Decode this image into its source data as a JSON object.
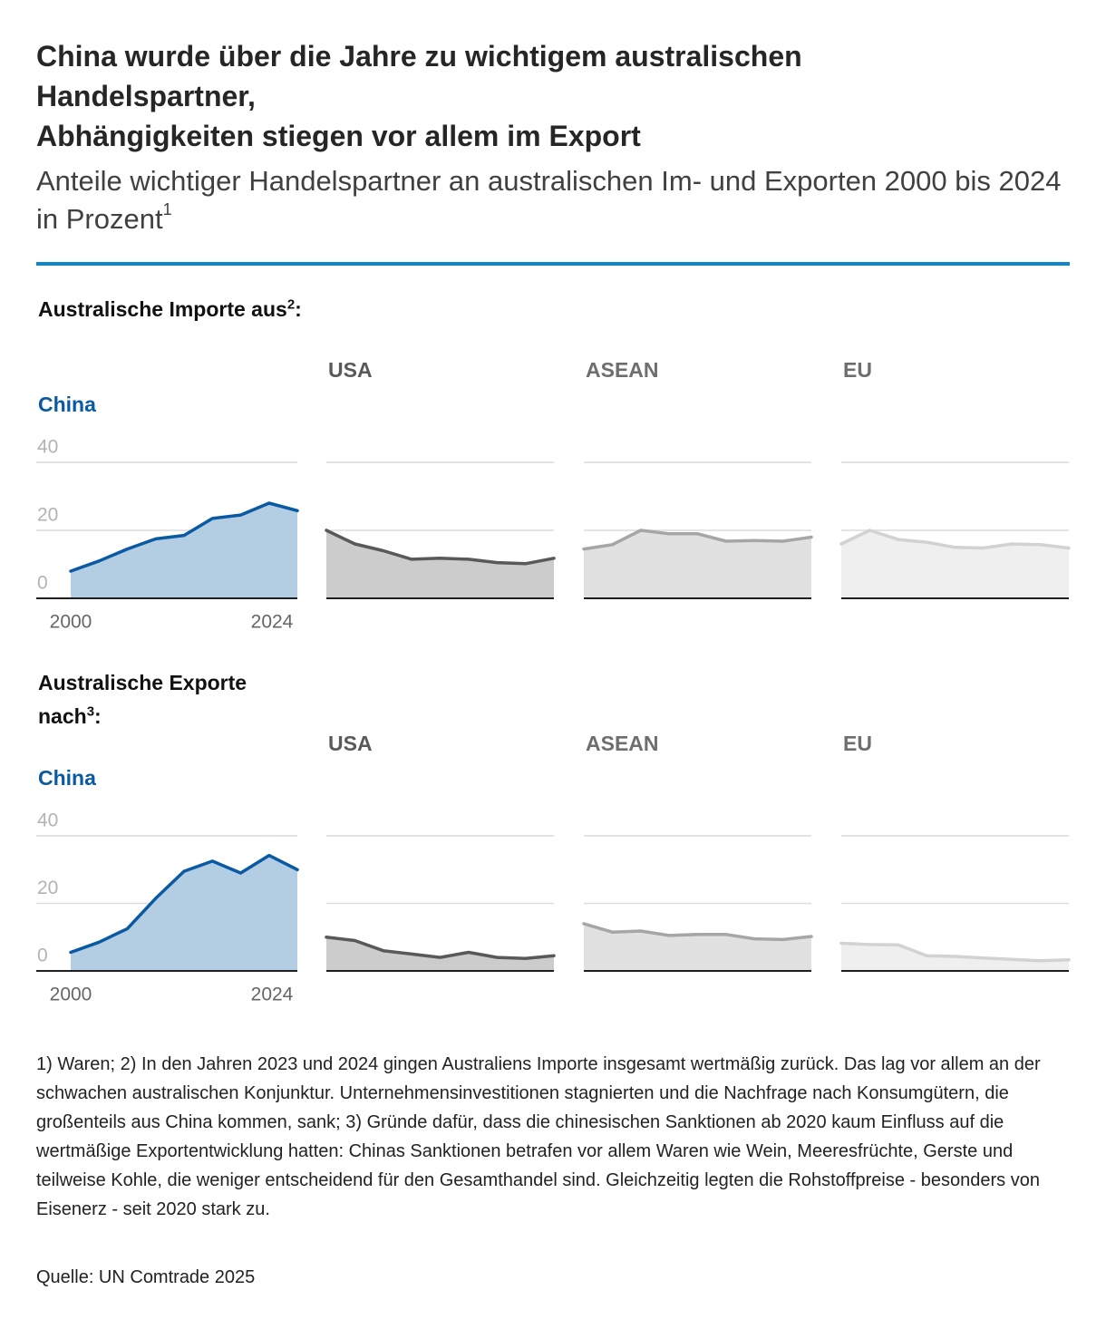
{
  "header": {
    "title_line1": "China wurde über die Jahre zu wichtigem australischen",
    "title_line2": "Handelspartner,",
    "title_line3": "Abhängigkeiten stiegen vor allem im Export",
    "subtitle": "Anteile wichtiger Handelspartner an australischen Im- und Exporten 2000 bis 2024 in Prozent",
    "subtitle_sup": "1"
  },
  "colors": {
    "accent_rule": "#0e86cc",
    "china_line": "#0a5aa3",
    "china_fill": "#b3cde3",
    "usa_line": "#595959",
    "usa_fill": "#cccccc",
    "asean_line": "#a6a6a6",
    "asean_fill": "#e1e1e1",
    "eu_line": "#d2d2d2",
    "eu_fill": "#efefef"
  },
  "sections": {
    "imports": {
      "label": "Australische Importe aus",
      "sup": "2",
      "suffix": ":"
    },
    "exports": {
      "label": "Australische Exporte nach",
      "sup": "3",
      "suffix": ":"
    }
  },
  "chart_data": [
    {
      "type": "area",
      "id": "imports",
      "title": "Australische Importe aus:",
      "ylim": [
        0,
        40
      ],
      "yticks": [
        "40",
        "20",
        "0"
      ],
      "x_start": "2000",
      "x_end": "2024",
      "series": [
        {
          "name": "China",
          "values": [
            8,
            11,
            14.5,
            17.5,
            18.5,
            23.5,
            24.5,
            28,
            25.8
          ]
        },
        {
          "name": "USA",
          "values": [
            20,
            16,
            14,
            11.5,
            11.8,
            11.5,
            10.5,
            10.2,
            11.8
          ]
        },
        {
          "name": "ASEAN",
          "values": [
            14.5,
            15.8,
            20,
            19,
            19,
            16.8,
            17,
            16.8,
            18
          ]
        },
        {
          "name": "EU",
          "values": [
            16,
            20,
            17.3,
            16.5,
            15,
            14.8,
            16,
            15.8,
            14.8
          ]
        }
      ]
    },
    {
      "type": "area",
      "id": "exports",
      "title": "Australische Exporte nach:",
      "ylim": [
        0,
        40
      ],
      "yticks": [
        "40",
        "20",
        "0"
      ],
      "x_start": "2000",
      "x_end": "2024",
      "series": [
        {
          "name": "China",
          "values": [
            5.5,
            8.5,
            12.5,
            21.5,
            29.5,
            32.5,
            29,
            34.2,
            30
          ]
        },
        {
          "name": "USA",
          "values": [
            10,
            9,
            6,
            5,
            4,
            5.5,
            4,
            3.7,
            4.5
          ]
        },
        {
          "name": "ASEAN",
          "values": [
            14,
            11.5,
            11.8,
            10.5,
            10.8,
            10.8,
            9.5,
            9.3,
            10.2
          ]
        },
        {
          "name": "EU",
          "values": [
            8.2,
            7.8,
            7.7,
            4.5,
            4.3,
            3.8,
            3.4,
            3,
            3.3
          ]
        }
      ]
    }
  ],
  "footnote": "1) Waren; 2) In den Jahren 2023 und 2024 gingen Australiens Importe insgesamt wertmäßig zurück. Das lag vor allem an der schwachen australischen Konjunktur. Unternehmensinvestitionen stagnierten und die Nachfrage nach Konsumgütern, die großenteils aus China kommen, sank; 3) Gründe dafür, dass die chinesischen Sanktionen ab 2020 kaum Einfluss auf die wertmäßige Exportentwicklung hatten: Chinas Sanktionen betrafen vor allem Waren wie Wein, Meeresfrüchte, Gerste und teilweise Kohle, die weniger entscheidend für den Gesamthandel sind. Gleichzeitig legten die Rohstoffpreise - besonders von Eisenerz - seit 2020 stark zu.",
  "source": "Quelle: UN Comtrade 2025"
}
